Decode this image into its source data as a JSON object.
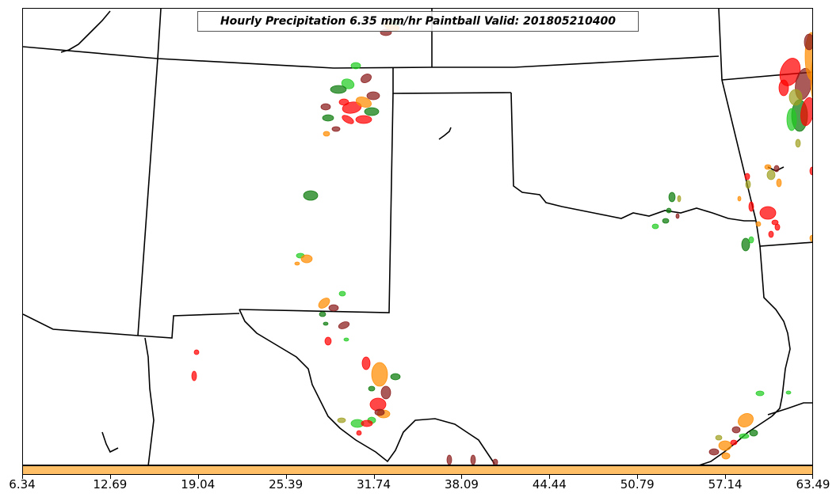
{
  "title": "Hourly Precipitation 6.35 mm/hr Paintball Valid: 201805210400",
  "colorbar": {
    "color": "#ffbf66",
    "ticks": [
      "6.34",
      "12.69",
      "19.04",
      "25.39",
      "31.74",
      "38.09",
      "44.44",
      "50.79",
      "57.14",
      "63.49"
    ]
  },
  "paint_colors": [
    "#ff0000",
    "#ff8c00",
    "#0a7a0a",
    "#22cc22",
    "#8b1a1a",
    "#a0a020",
    "#ff6666"
  ]
}
